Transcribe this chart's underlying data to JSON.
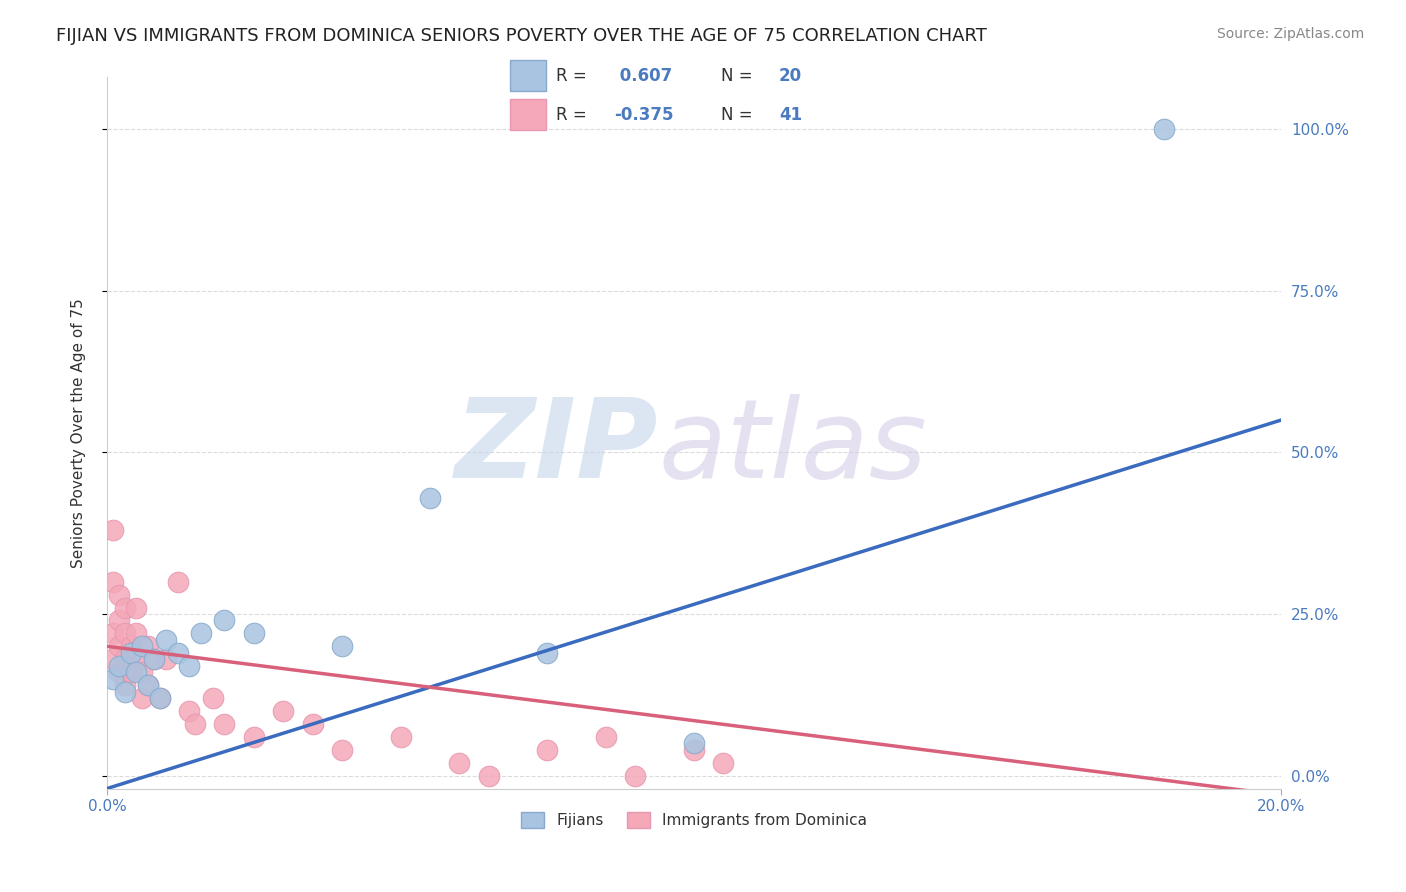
{
  "title": "FIJIAN VS IMMIGRANTS FROM DOMINICA SENIORS POVERTY OVER THE AGE OF 75 CORRELATION CHART",
  "source_text": "Source: ZipAtlas.com",
  "ylabel": "Seniors Poverty Over the Age of 75",
  "xlim": [
    0.0,
    0.2
  ],
  "ylim": [
    -0.02,
    1.08
  ],
  "ytick_labels_right": [
    "0.0%",
    "25.0%",
    "50.0%",
    "75.0%",
    "100.0%"
  ],
  "yticks_right": [
    0.0,
    0.25,
    0.5,
    0.75,
    1.0
  ],
  "fijian_R": 0.607,
  "fijian_N": 20,
  "dominica_R": -0.375,
  "dominica_N": 41,
  "fijian_color": "#a8c4e0",
  "dominica_color": "#f4a8b8",
  "fijian_line_color": "#3a6bbf",
  "dominica_line_color": "#d9607a",
  "background_color": "#ffffff",
  "grid_color": "#cccccc",
  "fijian_x": [
    0.001,
    0.002,
    0.003,
    0.004,
    0.005,
    0.006,
    0.007,
    0.008,
    0.009,
    0.01,
    0.012,
    0.014,
    0.016,
    0.02,
    0.025,
    0.04,
    0.055,
    0.075,
    0.1,
    0.18
  ],
  "fijian_y": [
    0.15,
    0.17,
    0.13,
    0.19,
    0.16,
    0.2,
    0.14,
    0.18,
    0.12,
    0.21,
    0.19,
    0.17,
    0.22,
    0.24,
    0.22,
    0.2,
    0.43,
    0.19,
    0.05,
    1.0
  ],
  "dominica_x": [
    0.001,
    0.001,
    0.001,
    0.001,
    0.002,
    0.002,
    0.002,
    0.002,
    0.003,
    0.003,
    0.003,
    0.003,
    0.004,
    0.004,
    0.005,
    0.005,
    0.005,
    0.006,
    0.006,
    0.007,
    0.007,
    0.008,
    0.009,
    0.01,
    0.012,
    0.014,
    0.015,
    0.018,
    0.02,
    0.025,
    0.03,
    0.035,
    0.04,
    0.05,
    0.06,
    0.065,
    0.075,
    0.085,
    0.09,
    0.1,
    0.105
  ],
  "dominica_y": [
    0.38,
    0.3,
    0.22,
    0.18,
    0.28,
    0.24,
    0.2,
    0.16,
    0.26,
    0.22,
    0.18,
    0.14,
    0.2,
    0.16,
    0.22,
    0.18,
    0.26,
    0.16,
    0.12,
    0.2,
    0.14,
    0.18,
    0.12,
    0.18,
    0.3,
    0.1,
    0.08,
    0.12,
    0.08,
    0.06,
    0.1,
    0.08,
    0.04,
    0.06,
    0.02,
    0.0,
    0.04,
    0.06,
    0.0,
    0.04,
    0.02
  ],
  "fijian_line_x": [
    0.0,
    0.2
  ],
  "fijian_line_y": [
    -0.02,
    0.55
  ],
  "dominica_line_x": [
    0.0,
    0.2
  ],
  "dominica_line_y": [
    0.2,
    -0.03
  ],
  "title_fontsize": 13,
  "axis_label_fontsize": 11,
  "tick_fontsize": 11,
  "legend_fontsize": 13,
  "source_fontsize": 10
}
